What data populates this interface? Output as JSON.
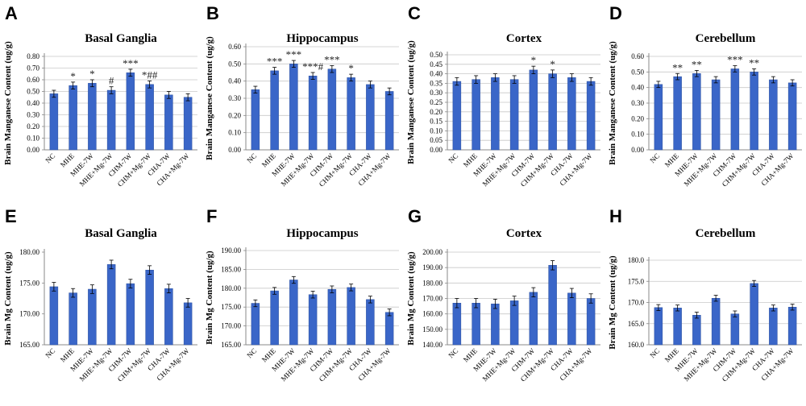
{
  "colors": {
    "bar": "#3a66c8",
    "bar_edge": "#2a4f9e",
    "axis": "#888888",
    "grid": "#c8c8c8",
    "error": "#000000"
  },
  "chart_data": [
    {
      "letter": "A",
      "type": "bar",
      "title": "Basal Ganglia",
      "ylabel": "Brain Manganese Content (ug/g)",
      "categories": [
        "NC",
        "MHE",
        "MHE-7W",
        "MHE+Mg-7W",
        "CHM-7W",
        "CHM+Mg-7W",
        "CHA-7W",
        "CHA+Mg-7W"
      ],
      "values": [
        0.48,
        0.55,
        0.57,
        0.51,
        0.66,
        0.56,
        0.47,
        0.45
      ],
      "errors": [
        0.03,
        0.03,
        0.03,
        0.03,
        0.03,
        0.03,
        0.03,
        0.03
      ],
      "sig": [
        "",
        "*",
        "*",
        "#",
        "***",
        "*##",
        "",
        ""
      ],
      "ylim": [
        0,
        0.8
      ],
      "step": 0.1,
      "decimals": 2,
      "grid": true
    },
    {
      "letter": "B",
      "type": "bar",
      "title": "Hippocampus",
      "ylabel": "Brain Manganese Content (ug/g)",
      "categories": [
        "NC",
        "MHE",
        "MHE-7W",
        "MHE+Mg-7W",
        "CHM-7W",
        "CHM+Mg-7W",
        "CHA-7W",
        "CHA+Mg-7W"
      ],
      "values": [
        0.35,
        0.46,
        0.5,
        0.43,
        0.47,
        0.42,
        0.38,
        0.34
      ],
      "errors": [
        0.02,
        0.02,
        0.02,
        0.02,
        0.02,
        0.02,
        0.02,
        0.02
      ],
      "sig": [
        "",
        "***",
        "***",
        "***#",
        "***",
        "*",
        "",
        ""
      ],
      "ylim": [
        0,
        0.6
      ],
      "step": 0.1,
      "decimals": 2,
      "grid": true
    },
    {
      "letter": "C",
      "type": "bar",
      "title": "Cortex",
      "ylabel": "Brain Manganese Content (ug/g)",
      "categories": [
        "NC",
        "MHE",
        "MHE-7W",
        "MHE+Mg-7W",
        "CHM-7W",
        "CHM+Mg-7W",
        "CHA-7W",
        "CHA+Mg-7W"
      ],
      "values": [
        0.36,
        0.37,
        0.38,
        0.37,
        0.42,
        0.4,
        0.38,
        0.36
      ],
      "errors": [
        0.02,
        0.02,
        0.02,
        0.02,
        0.02,
        0.02,
        0.02,
        0.02
      ],
      "sig": [
        "",
        "",
        "",
        "",
        "*",
        "*",
        "",
        ""
      ],
      "ylim": [
        0,
        0.5
      ],
      "step": 0.05,
      "decimals": 2,
      "grid": true
    },
    {
      "letter": "D",
      "type": "bar",
      "title": "Cerebellum",
      "ylabel": "Brain Manganese Content (ug/g)",
      "categories": [
        "NC",
        "MHE",
        "MHE-7W",
        "MHE+Mg-7W",
        "CHM-7W",
        "CHM+Mg-7W",
        "CHA-7W",
        "CHA+Mg-7W"
      ],
      "values": [
        0.42,
        0.47,
        0.49,
        0.45,
        0.52,
        0.5,
        0.45,
        0.43
      ],
      "errors": [
        0.02,
        0.02,
        0.02,
        0.02,
        0.02,
        0.02,
        0.02,
        0.02
      ],
      "sig": [
        "",
        "**",
        "**",
        "",
        "***",
        "**",
        "",
        ""
      ],
      "ylim": [
        0,
        0.6
      ],
      "step": 0.1,
      "decimals": 2,
      "grid": true
    },
    {
      "letter": "E",
      "type": "bar",
      "title": "Basal Ganglia",
      "ylabel": "Brain Mg Content (ug/g)",
      "categories": [
        "NC",
        "MHE",
        "MHE-7W",
        "MHE+Mg-7W",
        "CHM-7W",
        "CHM+Mg-7W",
        "CHA-7W",
        "CHA+Mg-7W"
      ],
      "values": [
        174.4,
        173.4,
        174.0,
        178.0,
        174.9,
        177.1,
        174.1,
        171.8
      ],
      "errors": [
        0.7,
        0.7,
        0.7,
        0.7,
        0.7,
        0.7,
        0.7,
        0.7
      ],
      "sig": [
        "",
        "",
        "",
        "",
        "",
        "",
        "",
        ""
      ],
      "ylim": [
        165,
        180
      ],
      "step": 5,
      "decimals": 2,
      "grid": false
    },
    {
      "letter": "F",
      "type": "bar",
      "title": "Hippocampus",
      "ylabel": "Brain Mg Content (ug/g)",
      "categories": [
        "NC",
        "MHE",
        "MHE-7W",
        "MHE+Mg-7W",
        "CHM-7W",
        "CHM+Mg-7W",
        "CHA-7W",
        "CHA+Mg-7W"
      ],
      "values": [
        176.0,
        179.3,
        182.2,
        178.3,
        179.7,
        180.2,
        177.0,
        173.6
      ],
      "errors": [
        0.9,
        0.9,
        0.9,
        0.9,
        0.9,
        0.9,
        0.9,
        0.9
      ],
      "sig": [
        "",
        "",
        "",
        "",
        "",
        "",
        "",
        ""
      ],
      "ylim": [
        165,
        190
      ],
      "step": 5,
      "decimals": 2,
      "grid": true
    },
    {
      "letter": "G",
      "type": "bar",
      "title": "Cortex",
      "ylabel": "Brain Mg Content (ug/g)",
      "categories": [
        "NC",
        "MHE",
        "MHE-7W",
        "MHE+Mg-7W",
        "CHM-7W",
        "CHM+Mg-7W",
        "CHA-7W",
        "CHA+Mg-7W"
      ],
      "values": [
        167,
        167,
        166.5,
        168.5,
        174,
        191.5,
        173.5,
        170
      ],
      "errors": [
        3,
        3,
        3,
        3,
        3,
        3,
        3,
        3
      ],
      "sig": [
        "",
        "",
        "",
        "",
        "",
        "",
        "",
        ""
      ],
      "ylim": [
        140,
        200
      ],
      "step": 10,
      "decimals": 2,
      "grid": true
    },
    {
      "letter": "H",
      "type": "bar",
      "title": "Cerebellum",
      "ylabel": "Brain Mg Content (ug/g)",
      "categories": [
        "NC",
        "MHE",
        "MHE-7W",
        "MHE+Mg-7W",
        "CHM-7W",
        "CHM+Mg-7W",
        "CHA-7W",
        "CHA+Mg-7W"
      ],
      "values": [
        168.8,
        168.7,
        167.0,
        171.0,
        167.3,
        174.5,
        168.7,
        168.9
      ],
      "errors": [
        0.7,
        0.7,
        0.7,
        0.7,
        0.7,
        0.7,
        0.7,
        0.7
      ],
      "sig": [
        "",
        "",
        "",
        "",
        "",
        "",
        "",
        ""
      ],
      "ylim": [
        160,
        180
      ],
      "step": 5,
      "decimals": 1,
      "grid": true
    }
  ]
}
